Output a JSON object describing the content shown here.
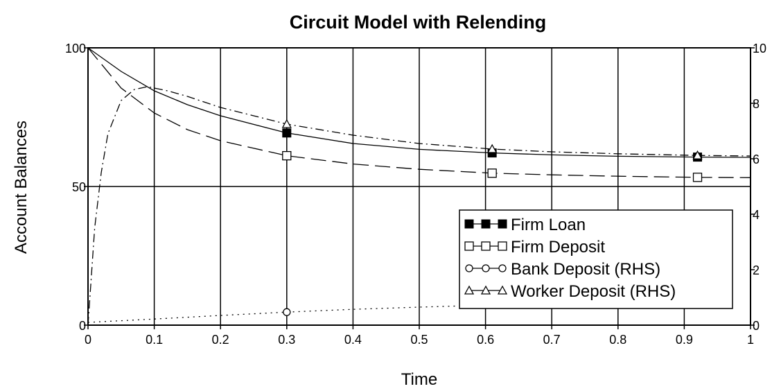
{
  "chart_data": {
    "type": "line",
    "title": "Circuit Model with Relending",
    "xlabel": "Time",
    "ylabel": "Account Balances",
    "xlim": [
      0,
      1
    ],
    "ylim": [
      0,
      100
    ],
    "y2lim": [
      0,
      10
    ],
    "x_ticks": [
      "0",
      "0.1",
      "0.2",
      "0.3",
      "0.4",
      "0.5",
      "0.6",
      "0.7",
      "0.8",
      "0.9",
      "1"
    ],
    "y_ticks": [
      "0",
      "50",
      "100"
    ],
    "y2_ticks": [
      "0",
      "2",
      "4",
      "6",
      "8",
      "10"
    ],
    "grid": true,
    "legend_position": "bottom-right",
    "series": [
      {
        "name": "Firm Loan",
        "axis": "left",
        "line": "solid",
        "marker": "filled-square",
        "x": [
          0,
          0.05,
          0.1,
          0.15,
          0.2,
          0.3,
          0.4,
          0.5,
          0.61,
          0.7,
          0.8,
          0.92,
          1
        ],
        "y": [
          100,
          91.5,
          84.5,
          79.5,
          75.5,
          69.3,
          65.5,
          63.4,
          62.1,
          61.4,
          60.9,
          60.6,
          60.5
        ],
        "marker_x": [
          0.3,
          0.61,
          0.92
        ]
      },
      {
        "name": "Firm Deposit",
        "axis": "left",
        "line": "long-dash",
        "marker": "open-square",
        "x": [
          0,
          0.05,
          0.1,
          0.15,
          0.2,
          0.3,
          0.4,
          0.5,
          0.61,
          0.7,
          0.8,
          0.92,
          1
        ],
        "y": [
          100,
          85.5,
          76.5,
          70.5,
          66.5,
          61.1,
          58.1,
          56.2,
          54.8,
          54.2,
          53.7,
          53.3,
          53.2
        ],
        "marker_x": [
          0.3,
          0.61,
          0.92
        ]
      },
      {
        "name": "Bank Deposit (RHS)",
        "axis": "right",
        "line": "dotted",
        "marker": "open-circle",
        "x": [
          0,
          0.1,
          0.2,
          0.3,
          0.4,
          0.5,
          0.6
        ],
        "y": [
          0.1,
          0.22,
          0.35,
          0.47,
          0.57,
          0.65,
          0.72
        ],
        "marker_x": [
          0.3
        ]
      },
      {
        "name": "Worker Deposit (RHS)",
        "axis": "right",
        "line": "dash-dot",
        "marker": "open-triangle",
        "x": [
          0,
          0.01,
          0.02,
          0.03,
          0.05,
          0.07,
          0.09,
          0.12,
          0.15,
          0.2,
          0.25,
          0.3,
          0.4,
          0.5,
          0.61,
          0.7,
          0.8,
          0.92,
          1
        ],
        "y": [
          0,
          3.5,
          5.5,
          6.9,
          8.1,
          8.5,
          8.6,
          8.45,
          8.25,
          7.85,
          7.55,
          7.25,
          6.85,
          6.55,
          6.35,
          6.25,
          6.18,
          6.12,
          6.1
        ],
        "marker_x": [
          0.3,
          0.61,
          0.92
        ]
      }
    ]
  }
}
